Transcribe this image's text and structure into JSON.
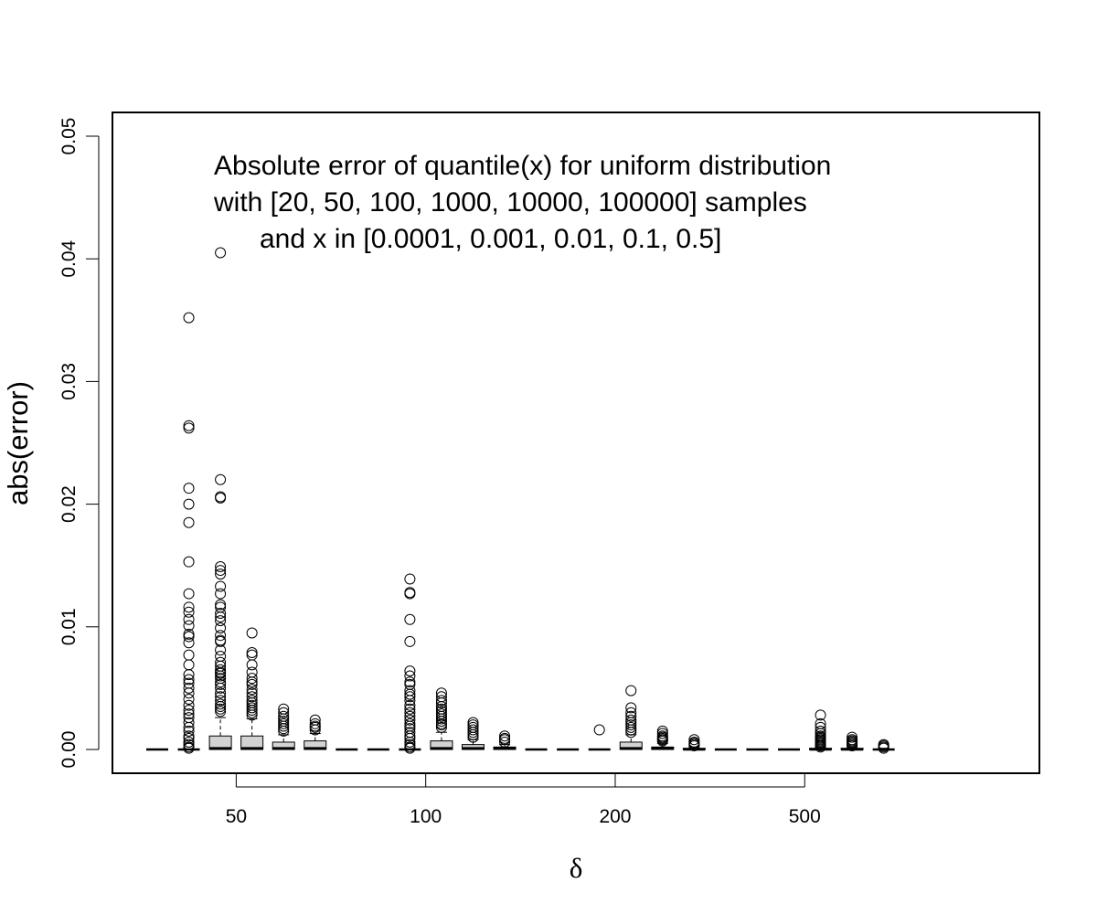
{
  "chart_data": {
    "type": "boxplot",
    "title_lines": [
      "Absolute error of quantile(x) for uniform distribution",
      "with [20, 50, 100, 1000, 10000, 100000] samples",
      "and x in [0.0001, 0.001, 0.01, 0.1, 0.5]"
    ],
    "xlabel": "δ",
    "ylabel": "abs(error)",
    "ylim": [
      -0.002,
      0.051
    ],
    "yticks": [
      0.0,
      0.01,
      0.02,
      0.03,
      0.04,
      0.05
    ],
    "ytick_labels": [
      "0.00",
      "0.01",
      "0.02",
      "0.03",
      "0.04",
      "0.05"
    ],
    "groups": [
      "50",
      "100",
      "200",
      "500"
    ],
    "boxes_per_group": 6,
    "boxes": [
      {
        "group": "50",
        "index": 0,
        "q1": 0,
        "median": 0,
        "q3": 0,
        "whisker_low": 0,
        "whisker_high": 0,
        "outliers": []
      },
      {
        "group": "50",
        "index": 1,
        "q1": 0,
        "median": 0,
        "q3": 0,
        "whisker_low": 0,
        "whisker_high": 0,
        "outliers": [
          0.0352,
          0.0264,
          0.0262,
          0.0213,
          0.02,
          0.0185,
          0.0153,
          0.0127,
          0.0116,
          0.0112,
          0.0106,
          0.0101,
          0.0094,
          0.0092,
          0.0087,
          0.0077,
          0.0069,
          0.0061,
          0.0057,
          0.0054,
          0.005,
          0.0046,
          0.0041,
          0.0036,
          0.0032,
          0.0029,
          0.0026,
          0.0022,
          0.0018,
          0.0015,
          0.0011,
          0.0009,
          0.0006,
          0.0004,
          0.0002,
          0.0001
        ]
      },
      {
        "group": "50",
        "index": 2,
        "q1": 0,
        "median": 0.0001,
        "q3": 0.0011,
        "whisker_low": 0,
        "whisker_high": 0.0026,
        "outliers": [
          0.0405,
          0.022,
          0.0206,
          0.0205,
          0.0149,
          0.0146,
          0.0143,
          0.0133,
          0.0127,
          0.0118,
          0.0116,
          0.0111,
          0.0108,
          0.0105,
          0.0099,
          0.0093,
          0.0089,
          0.0088,
          0.0081,
          0.0076,
          0.0071,
          0.0068,
          0.0065,
          0.0063,
          0.0062,
          0.006,
          0.0058,
          0.0055,
          0.0053,
          0.005,
          0.0046,
          0.0043,
          0.004,
          0.0037,
          0.0035,
          0.0033,
          0.0031
        ]
      },
      {
        "group": "50",
        "index": 3,
        "q1": 0,
        "median": 0.0001,
        "q3": 0.0011,
        "whisker_low": 0,
        "whisker_high": 0.0025,
        "outliers": [
          0.0095,
          0.0079,
          0.0077,
          0.0069,
          0.0063,
          0.0058,
          0.0055,
          0.0053,
          0.0049,
          0.0046,
          0.0043,
          0.004,
          0.0038,
          0.0036,
          0.0034,
          0.0032,
          0.003,
          0.0028
        ]
      },
      {
        "group": "50",
        "index": 4,
        "q1": 0,
        "median": 0.0001,
        "q3": 0.0006,
        "whisker_low": 0,
        "whisker_high": 0.0012,
        "outliers": [
          0.0033,
          0.003,
          0.0027,
          0.0025,
          0.0023,
          0.0021,
          0.0019,
          0.0017,
          0.0015
        ]
      },
      {
        "group": "50",
        "index": 5,
        "q1": 0,
        "median": 0.0001,
        "q3": 0.0007,
        "whisker_low": 0,
        "whisker_high": 0.0013,
        "outliers": [
          0.0024,
          0.0021,
          0.0019,
          0.0018,
          0.0016
        ]
      },
      {
        "group": "100",
        "index": 0,
        "q1": 0,
        "median": 0,
        "q3": 0,
        "whisker_low": 0,
        "whisker_high": 0,
        "outliers": []
      },
      {
        "group": "100",
        "index": 1,
        "q1": 0,
        "median": 0,
        "q3": 0,
        "whisker_low": 0,
        "whisker_high": 0,
        "outliers": []
      },
      {
        "group": "100",
        "index": 2,
        "q1": 0,
        "median": 0,
        "q3": 0,
        "whisker_low": 0,
        "whisker_high": 0,
        "outliers": [
          0.0139,
          0.0128,
          0.0127,
          0.0106,
          0.0088,
          0.0064,
          0.006,
          0.0055,
          0.0053,
          0.0048,
          0.0045,
          0.0043,
          0.004,
          0.0036,
          0.0033,
          0.003,
          0.0027,
          0.0024,
          0.0021,
          0.0019,
          0.0017,
          0.0014,
          0.0011,
          0.0009,
          0.0006,
          0.0004,
          0.0002,
          0.0001
        ]
      },
      {
        "group": "100",
        "index": 3,
        "q1": 0,
        "median": 0.0001,
        "q3": 0.0007,
        "whisker_low": 0,
        "whisker_high": 0.0014,
        "outliers": [
          0.0046,
          0.0043,
          0.004,
          0.0038,
          0.0035,
          0.0033,
          0.0031,
          0.0029,
          0.0027,
          0.0025,
          0.0023,
          0.0021,
          0.002,
          0.0018
        ]
      },
      {
        "group": "100",
        "index": 4,
        "q1": 0,
        "median": 0.0001,
        "q3": 0.0004,
        "whisker_low": 0,
        "whisker_high": 0.0008,
        "outliers": [
          0.0022,
          0.002,
          0.0018,
          0.0016,
          0.0014,
          0.0012,
          0.001
        ]
      },
      {
        "group": "100",
        "index": 5,
        "q1": 0,
        "median": 0.0001,
        "q3": 0.0002,
        "whisker_low": 0,
        "whisker_high": 0.0004,
        "outliers": [
          0.0011,
          0.0009,
          0.0008,
          0.0006
        ]
      },
      {
        "group": "200",
        "index": 0,
        "q1": 0,
        "median": 0,
        "q3": 0,
        "whisker_low": 0,
        "whisker_high": 0,
        "outliers": []
      },
      {
        "group": "200",
        "index": 1,
        "q1": 0,
        "median": 0,
        "q3": 0,
        "whisker_low": 0,
        "whisker_high": 0,
        "outliers": []
      },
      {
        "group": "200",
        "index": 2,
        "q1": 0,
        "median": 0,
        "q3": 0,
        "whisker_low": 0,
        "whisker_high": 0,
        "outliers": [
          0.0016
        ]
      },
      {
        "group": "200",
        "index": 3,
        "q1": 0,
        "median": 0.0001,
        "q3": 0.0006,
        "whisker_low": 0,
        "whisker_high": 0.0012,
        "outliers": [
          0.0048,
          0.0034,
          0.003,
          0.0027,
          0.0024,
          0.0022,
          0.002,
          0.0018,
          0.0016,
          0.0014
        ]
      },
      {
        "group": "200",
        "index": 4,
        "q1": 0,
        "median": 0.0001,
        "q3": 0.0002,
        "whisker_low": 0,
        "whisker_high": 0.0005,
        "outliers": [
          0.0015,
          0.0013,
          0.0011,
          0.001,
          0.0009,
          0.0008,
          0.0007
        ]
      },
      {
        "group": "200",
        "index": 5,
        "q1": 0,
        "median": 0,
        "q3": 0.0001,
        "whisker_low": 0,
        "whisker_high": 0.0002,
        "outliers": [
          0.0008,
          0.0006,
          0.0005,
          0.0004,
          0.0003
        ]
      },
      {
        "group": "500",
        "index": 0,
        "q1": 0,
        "median": 0,
        "q3": 0,
        "whisker_low": 0,
        "whisker_high": 0,
        "outliers": []
      },
      {
        "group": "500",
        "index": 1,
        "q1": 0,
        "median": 0,
        "q3": 0,
        "whisker_low": 0,
        "whisker_high": 0,
        "outliers": []
      },
      {
        "group": "500",
        "index": 2,
        "q1": 0,
        "median": 0,
        "q3": 0,
        "whisker_low": 0,
        "whisker_high": 0,
        "outliers": []
      },
      {
        "group": "500",
        "index": 3,
        "q1": 0,
        "median": 0,
        "q3": 0.0001,
        "whisker_low": 0,
        "whisker_high": 0.0002,
        "outliers": [
          0.0028,
          0.0021,
          0.0018,
          0.0015,
          0.0013,
          0.0011,
          0.001,
          0.0009,
          0.0008,
          0.0007,
          0.0006,
          0.0005,
          0.0004,
          0.0003,
          0.0002
        ]
      },
      {
        "group": "500",
        "index": 4,
        "q1": 0,
        "median": 0,
        "q3": 0.0001,
        "whisker_low": 0,
        "whisker_high": 0.0002,
        "outliers": [
          0.001,
          0.0008,
          0.0007,
          0.0006,
          0.0005,
          0.0004,
          0.0003
        ]
      },
      {
        "group": "500",
        "index": 5,
        "q1": 0,
        "median": 0,
        "q3": 0,
        "whisker_low": 0,
        "whisker_high": 0.0001,
        "outliers": [
          0.0004,
          0.0003,
          0.0002,
          0.0001
        ]
      }
    ],
    "colors": {
      "box_fill": "#d3d3d3",
      "stroke": "#000000",
      "background": "#ffffff"
    },
    "grid": false,
    "legend": "none"
  }
}
